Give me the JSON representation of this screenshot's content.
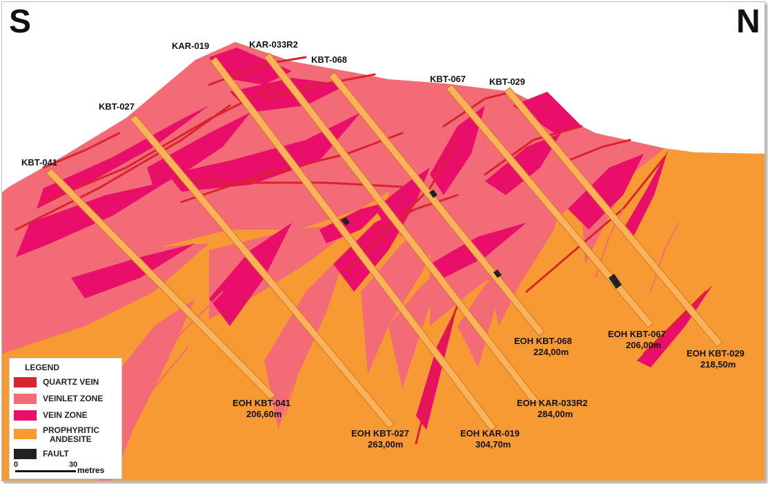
{
  "direction": {
    "left": "S",
    "right": "N"
  },
  "colors": {
    "quartz_vein": "#d9232e",
    "veinlet_zone": "#f36b76",
    "vein_zone": "#ea0e6b",
    "andesite": "#f79a33",
    "fault": "#222222",
    "drillhole": "#fbb25a"
  },
  "drillholes": [
    {
      "id": "kbt-041",
      "collar": "KBT-041",
      "eoh": "EOH KBT-041",
      "depth": "206,60m"
    },
    {
      "id": "kbt-027",
      "collar": "KBT-027",
      "eoh": "EOH KBT-027",
      "depth": "263,00m"
    },
    {
      "id": "kar-019",
      "collar": "KAR-019",
      "eoh": "EOH KAR-019",
      "depth": "304,70m"
    },
    {
      "id": "kar-033r2",
      "collar": "KAR-033R2",
      "eoh": "EOH KAR-033R2",
      "depth": "284,00m"
    },
    {
      "id": "kbt-068",
      "collar": "KBT-068",
      "eoh": "EOH KBT-068",
      "depth": "224,00m"
    },
    {
      "id": "kbt-067",
      "collar": "KBT-067",
      "eoh": "EOH KBT-067",
      "depth": "206,00m"
    },
    {
      "id": "kbt-029",
      "collar": "KBT-029",
      "eoh": "EOH KBT-029",
      "depth": "218,50m"
    }
  ],
  "legend": {
    "title": "LEGEND",
    "items": [
      {
        "label": "QUARTZ VEIN",
        "color": "#d9232e"
      },
      {
        "label": "VEINLET ZONE",
        "color": "#f36b76"
      },
      {
        "label": "VEIN ZONE",
        "color": "#ea0e6b"
      },
      {
        "label_line1": "PROPHYRITIC",
        "label_line2": "ANDESITE",
        "color": "#f79a33"
      },
      {
        "label": "FAULT",
        "color": "#222222"
      }
    ]
  },
  "scale": {
    "start": "0",
    "end": "30",
    "unit": "metres"
  }
}
